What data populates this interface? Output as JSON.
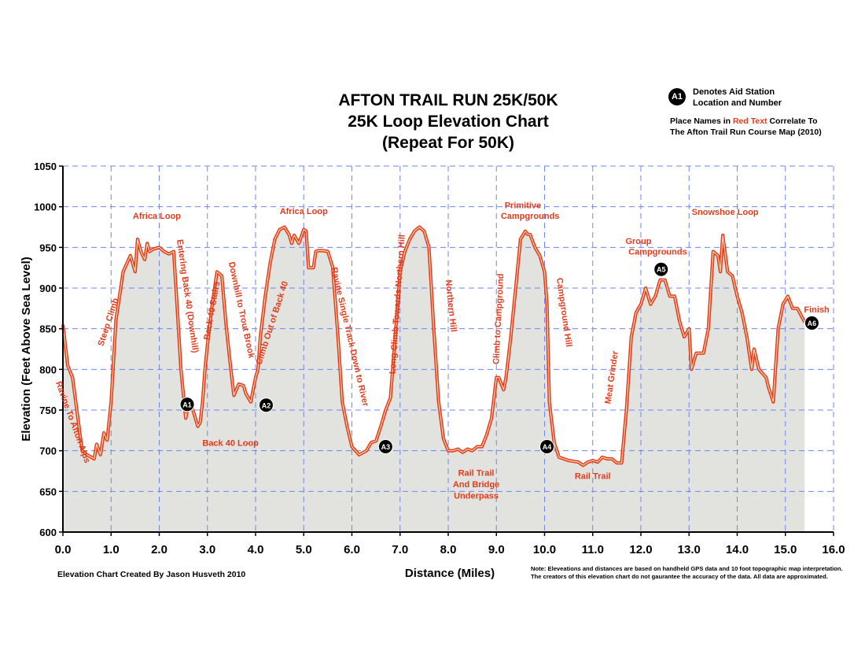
{
  "chart_data": {
    "type": "area",
    "title": [
      "AFTON TRAIL RUN 25K/50K",
      "25K Loop Elevation Chart",
      "(Repeat For 50K)"
    ],
    "xlabel": "Distance (Miles)",
    "ylabel": "Elevation (Feet Above Sea Level)",
    "xlim": [
      0,
      16
    ],
    "ylim": [
      600,
      1050
    ],
    "x_ticks": [
      "0.0",
      "1.0",
      "2.0",
      "3.0",
      "4.0",
      "5.0",
      "6.0",
      "7.0",
      "8.0",
      "9.0",
      "10.0",
      "11.0",
      "12.0",
      "13.0",
      "14.0",
      "15.0",
      "16.0"
    ],
    "y_ticks": [
      "600",
      "650",
      "700",
      "750",
      "800",
      "850",
      "900",
      "950",
      "1000",
      "1050"
    ],
    "grid": true,
    "series": [
      {
        "x": [
          0.0,
          0.1,
          0.2,
          0.3,
          0.4,
          0.5,
          0.65,
          0.7,
          0.78,
          0.85,
          0.92,
          1.0,
          1.1,
          1.25,
          1.4,
          1.5,
          1.55,
          1.62,
          1.7,
          1.75,
          1.8,
          1.88,
          2.0,
          2.1,
          2.2,
          2.3,
          2.4,
          2.45,
          2.55,
          2.6,
          2.7,
          2.8,
          2.85,
          2.9,
          2.95,
          3.0,
          3.1,
          3.2,
          3.3,
          3.38,
          3.45,
          3.55,
          3.65,
          3.75,
          3.8,
          3.9,
          4.0,
          4.05,
          4.1,
          4.2,
          4.3,
          4.4,
          4.5,
          4.6,
          4.7,
          4.75,
          4.8,
          4.9,
          5.0,
          5.05,
          5.1,
          5.2,
          5.25,
          5.3,
          5.4,
          5.5,
          5.6,
          5.7,
          5.8,
          5.9,
          6.0,
          6.15,
          6.3,
          6.4,
          6.5,
          6.6,
          6.7,
          6.8,
          6.9,
          7.0,
          7.1,
          7.2,
          7.3,
          7.4,
          7.5,
          7.6,
          7.7,
          7.8,
          7.9,
          8.0,
          8.1,
          8.2,
          8.3,
          8.4,
          8.5,
          8.6,
          8.7,
          8.8,
          8.9,
          9.0,
          9.05,
          9.15,
          9.2,
          9.3,
          9.4,
          9.5,
          9.6,
          9.65,
          9.7,
          9.8,
          9.9,
          10.0,
          10.05,
          10.1,
          10.2,
          10.3,
          10.5,
          10.7,
          10.8,
          10.9,
          11.0,
          11.1,
          11.2,
          11.3,
          11.4,
          11.5,
          11.6,
          11.7,
          11.8,
          11.9,
          12.0,
          12.1,
          12.2,
          12.3,
          12.4,
          12.5,
          12.6,
          12.7,
          12.8,
          12.9,
          13.0,
          13.05,
          13.15,
          13.3,
          13.4,
          13.5,
          13.6,
          13.65,
          13.7,
          13.8,
          13.9,
          14.0,
          14.1,
          14.2,
          14.3,
          14.35,
          14.45,
          14.6,
          14.65,
          14.75,
          14.85,
          14.95,
          15.05,
          15.15,
          15.25,
          15.4
        ],
        "y": [
          855,
          805,
          790,
          745,
          700,
          695,
          690,
          708,
          695,
          722,
          713,
          760,
          860,
          920,
          940,
          920,
          960,
          945,
          935,
          955,
          945,
          948,
          950,
          945,
          942,
          945,
          850,
          800,
          740,
          755,
          750,
          730,
          735,
          760,
          800,
          830,
          880,
          920,
          915,
          860,
          820,
          768,
          782,
          780,
          770,
          760,
          790,
          800,
          840,
          890,
          930,
          960,
          972,
          975,
          965,
          955,
          965,
          955,
          972,
          970,
          925,
          925,
          945,
          946,
          946,
          945,
          926,
          850,
          760,
          730,
          705,
          695,
          700,
          710,
          712,
          730,
          750,
          765,
          840,
          920,
          945,
          960,
          970,
          975,
          970,
          950,
          850,
          760,
          715,
          700,
          700,
          702,
          698,
          702,
          700,
          705,
          705,
          720,
          740,
          790,
          790,
          775,
          790,
          840,
          900,
          960,
          970,
          966,
          966,
          950,
          940,
          920,
          880,
          760,
          710,
          692,
          688,
          686,
          682,
          686,
          688,
          686,
          692,
          690,
          690,
          685,
          685,
          750,
          840,
          870,
          880,
          900,
          880,
          890,
          910,
          910,
          890,
          890,
          860,
          840,
          850,
          800,
          820,
          820,
          850,
          945,
          940,
          920,
          965,
          920,
          915,
          890,
          870,
          840,
          800,
          825,
          800,
          790,
          778,
          760,
          850,
          880,
          890,
          875,
          875,
          858
        ]
      }
    ],
    "annotations": [
      {
        "text": "Ravine To Afton Alps",
        "x": 0.2,
        "y": 735,
        "rotation": 70
      },
      {
        "text": "Steep Climb",
        "x": 0.95,
        "y": 858,
        "rotation": -72
      },
      {
        "text": "Africa Loop",
        "x": 1.95,
        "y": 988
      },
      {
        "text": "Entering Back 40 (Downhill)",
        "x": 2.58,
        "y": 890,
        "rotation": 82
      },
      {
        "text": "Back 40 Stairs",
        "x": 3.1,
        "y": 872,
        "rotation": -80
      },
      {
        "text": "Downhill to Trout Brook",
        "x": 3.7,
        "y": 873,
        "rotation": 78
      },
      {
        "text": "Back 40 Loop",
        "x": 3.48,
        "y": 709
      },
      {
        "text": "Climb Out of Back 40",
        "x": 4.35,
        "y": 857,
        "rotation": -72
      },
      {
        "text": "Africa Loop",
        "x": 5.0,
        "y": 994
      },
      {
        "text": "Ravine Single Track Down to River",
        "x": 5.95,
        "y": 840,
        "rotation": 77
      },
      {
        "text": "Long Climb Towards Northern Hill",
        "x": 6.95,
        "y": 880,
        "rotation": -86
      },
      {
        "text": "Northern Hill",
        "x": 8.05,
        "y": 878,
        "rotation": 84
      },
      {
        "text": "Rail Trail",
        "x": 8.58,
        "y": 672
      },
      {
        "text": "And Bridge",
        "x": 8.58,
        "y": 658
      },
      {
        "text": "Underpass",
        "x": 8.58,
        "y": 644
      },
      {
        "text": "Climb to Campground",
        "x": 9.05,
        "y": 862,
        "rotation": -87
      },
      {
        "text": "Primitive",
        "x": 9.55,
        "y": 1001
      },
      {
        "text": "Campgrounds",
        "x": 9.7,
        "y": 988
      },
      {
        "text": "Campground Hill",
        "x": 10.4,
        "y": 870,
        "rotation": 82
      },
      {
        "text": "Rail Trail",
        "x": 11.0,
        "y": 668
      },
      {
        "text": "Meat Grinder",
        "x": 11.4,
        "y": 790,
        "rotation": -82
      },
      {
        "text": "Group",
        "x": 11.95,
        "y": 957
      },
      {
        "text": "Campgrounds",
        "x": 12.35,
        "y": 944
      },
      {
        "text": "Snowshoe Loop",
        "x": 13.75,
        "y": 993
      },
      {
        "text": "Finish",
        "x": 15.65,
        "y": 873
      }
    ],
    "aid_stations": [
      {
        "label": "A1",
        "x": 2.58,
        "y": 757
      },
      {
        "label": "A2",
        "x": 4.22,
        "y": 756
      },
      {
        "label": "A3",
        "x": 6.7,
        "y": 705
      },
      {
        "label": "A4",
        "x": 10.05,
        "y": 705
      },
      {
        "label": "A5",
        "x": 12.42,
        "y": 923
      },
      {
        "label": "A6",
        "x": 15.55,
        "y": 857
      }
    ],
    "colors": {
      "line": "#e23b1c",
      "line_inner": "#ffd7b0",
      "fill": "#e2e2de",
      "grid": "#6f86ee",
      "annotation": "#e23b1c"
    }
  },
  "legend": {
    "badge": "A1",
    "line1": "Denotes Aid Station",
    "line2": "Location and Number",
    "place_prefix": "Place Names in ",
    "place_red": "Red Text",
    "place_suffix": " Correlate To",
    "place_line2": "The Afton Trail Run Course Map (2010)"
  },
  "credit": "Elevation Chart Created By Jason Husveth 2010",
  "disclaimer": {
    "line1": "Note: Eleveations and distances are based on handheld GPS data and 10 foot topographic map interpretation.",
    "line2": "The creators of this elevation chart do not gaurantee the accuracy of the data.  All data are approximated."
  }
}
